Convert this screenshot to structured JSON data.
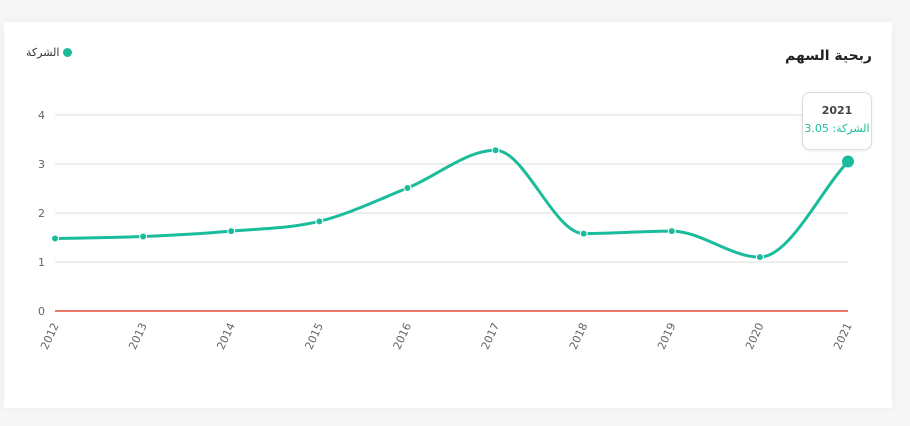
{
  "card": {
    "title": "ربحية السهم"
  },
  "legend": {
    "label": "الشركة"
  },
  "tooltip": {
    "year": "2021",
    "label": "الشركة: 3.05"
  },
  "colors": {
    "series": "#1abc9c",
    "zero_line": "#e74c3c",
    "grid": "#dddddd"
  },
  "chart_data": {
    "type": "line",
    "x": [
      "2012",
      "2013",
      "2014",
      "2015",
      "2016",
      "2017",
      "2018",
      "2019",
      "2020",
      "2021"
    ],
    "series": [
      {
        "name": "الشركة",
        "values": [
          1.48,
          1.52,
          1.63,
          1.83,
          2.51,
          3.28,
          1.58,
          1.63,
          1.1,
          3.05
        ]
      }
    ],
    "yticks": [
      "0",
      "1",
      "2",
      "3",
      "4"
    ],
    "ylim": [
      0,
      4
    ],
    "grid": true,
    "legend_position": "top-left"
  }
}
